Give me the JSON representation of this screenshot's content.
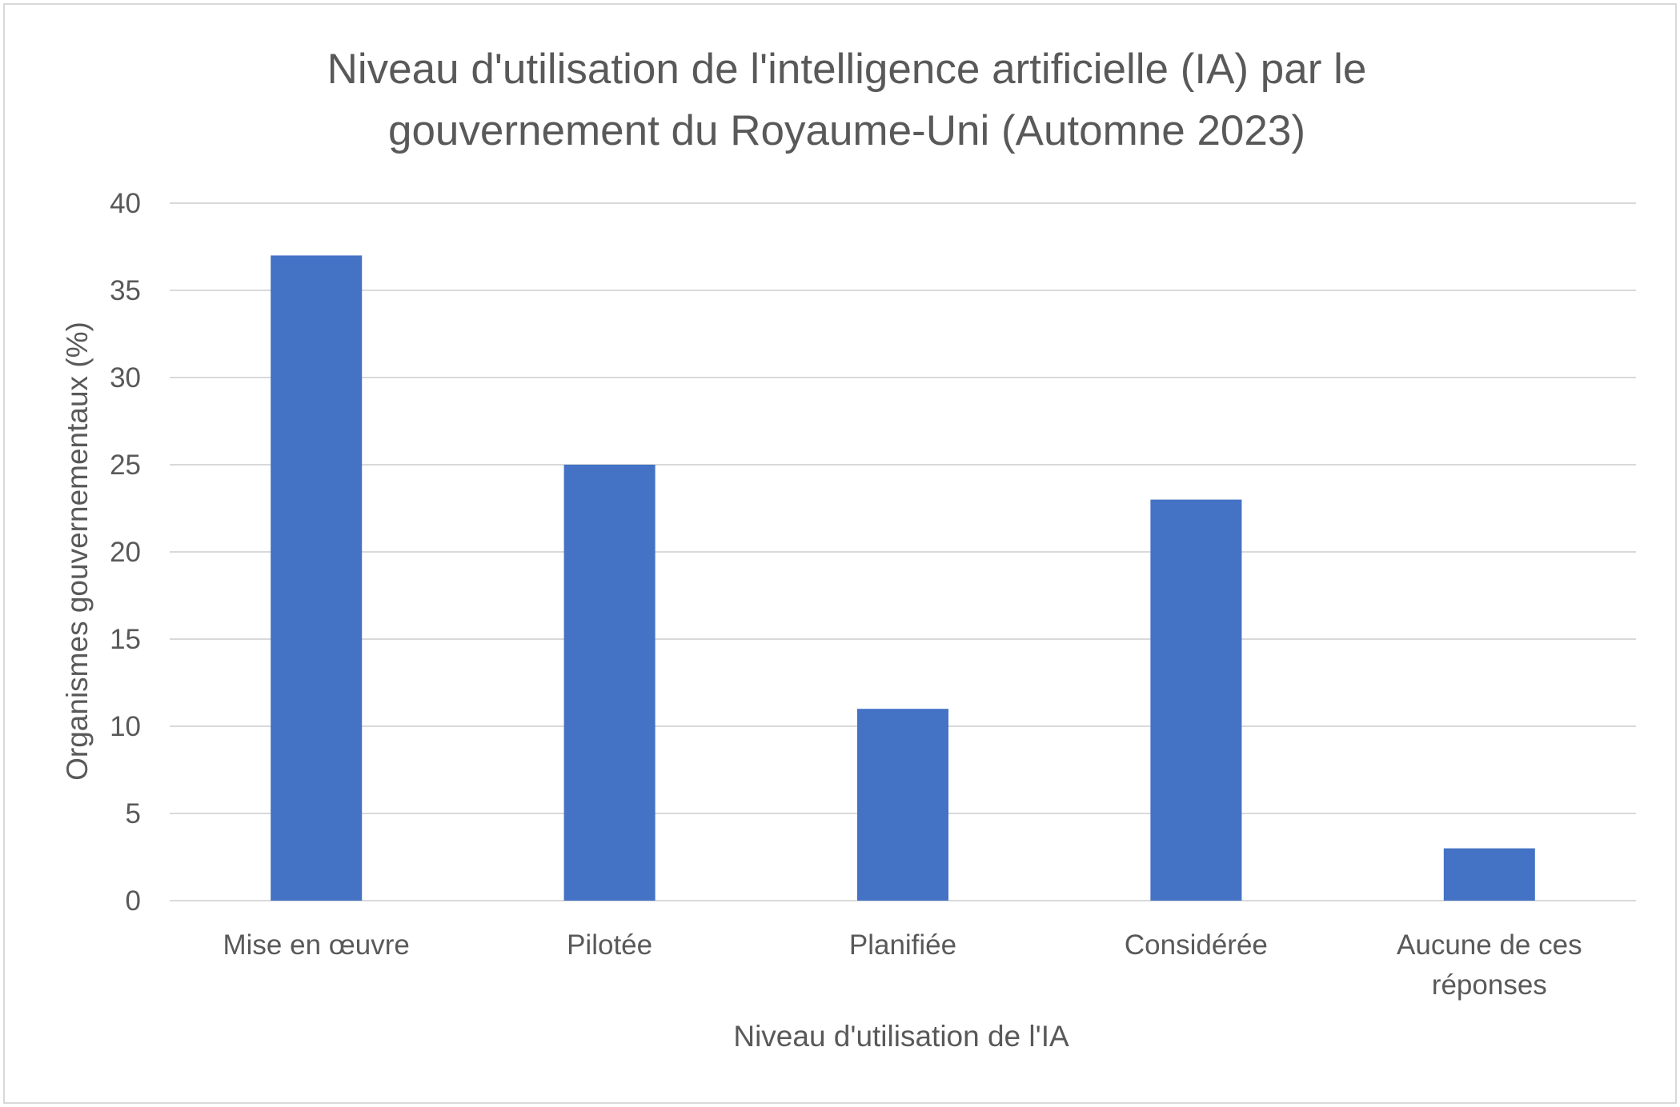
{
  "chart_data": {
    "type": "bar",
    "title_lines": [
      "Niveau d'utilisation de l'intelligence artificielle (IA) par le",
      "gouvernement du Royaume-Uni (Automne 2023)"
    ],
    "xlabel": "Niveau d'utilisation de l'IA",
    "ylabel": "Organismes gouvernementaux (%)",
    "categories": [
      [
        "Mise en œuvre"
      ],
      [
        "Pilotée"
      ],
      [
        "Planifiée"
      ],
      [
        "Considérée"
      ],
      [
        "Aucune de ces",
        "réponses"
      ]
    ],
    "values": [
      37,
      25,
      11,
      23,
      3
    ],
    "ylim": [
      0,
      40
    ],
    "yticks": [
      "0",
      "5",
      "10",
      "15",
      "20",
      "25",
      "30",
      "35",
      "40"
    ],
    "grid": true,
    "bar_color": "#4472c4"
  }
}
